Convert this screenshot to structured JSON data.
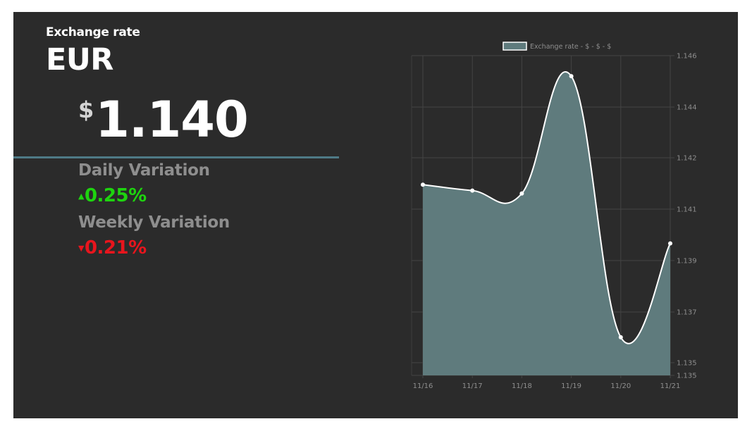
{
  "header": {
    "title": "Exchange rate",
    "currency": "EUR"
  },
  "price": {
    "symbol": "$",
    "value": "1.140"
  },
  "daily": {
    "label": "Daily Variation",
    "value": "0.25%",
    "direction": "up"
  },
  "weekly": {
    "label": "Weekly Variation",
    "value": "0.21%",
    "direction": "down"
  },
  "colors": {
    "panel": "#2b2b2b",
    "accent": "#4e7a86",
    "area": "#5f7b7d",
    "line": "#ffffff",
    "up": "#1ed40f",
    "down": "#e8151d"
  },
  "chart_data": {
    "type": "area",
    "legend": "Exchange rate - $ - $ - $",
    "legend_position": "top-center",
    "categories": [
      "11/16",
      "11/17",
      "11/18",
      "11/19",
      "11/20",
      "11/21"
    ],
    "series": [
      {
        "name": "Exchange rate - $ - $ - $",
        "values": [
          1.1418,
          1.1416,
          1.1415,
          1.1455,
          1.1366,
          1.1398
        ]
      }
    ],
    "y_ticks": [
      "1.135",
      "1.135",
      "1.137",
      "1.139",
      "1.141",
      "1.142",
      "1.144",
      "1.146"
    ],
    "ylim": [
      1.1353,
      1.1462
    ],
    "grid": true,
    "y_axis_side": "right"
  }
}
